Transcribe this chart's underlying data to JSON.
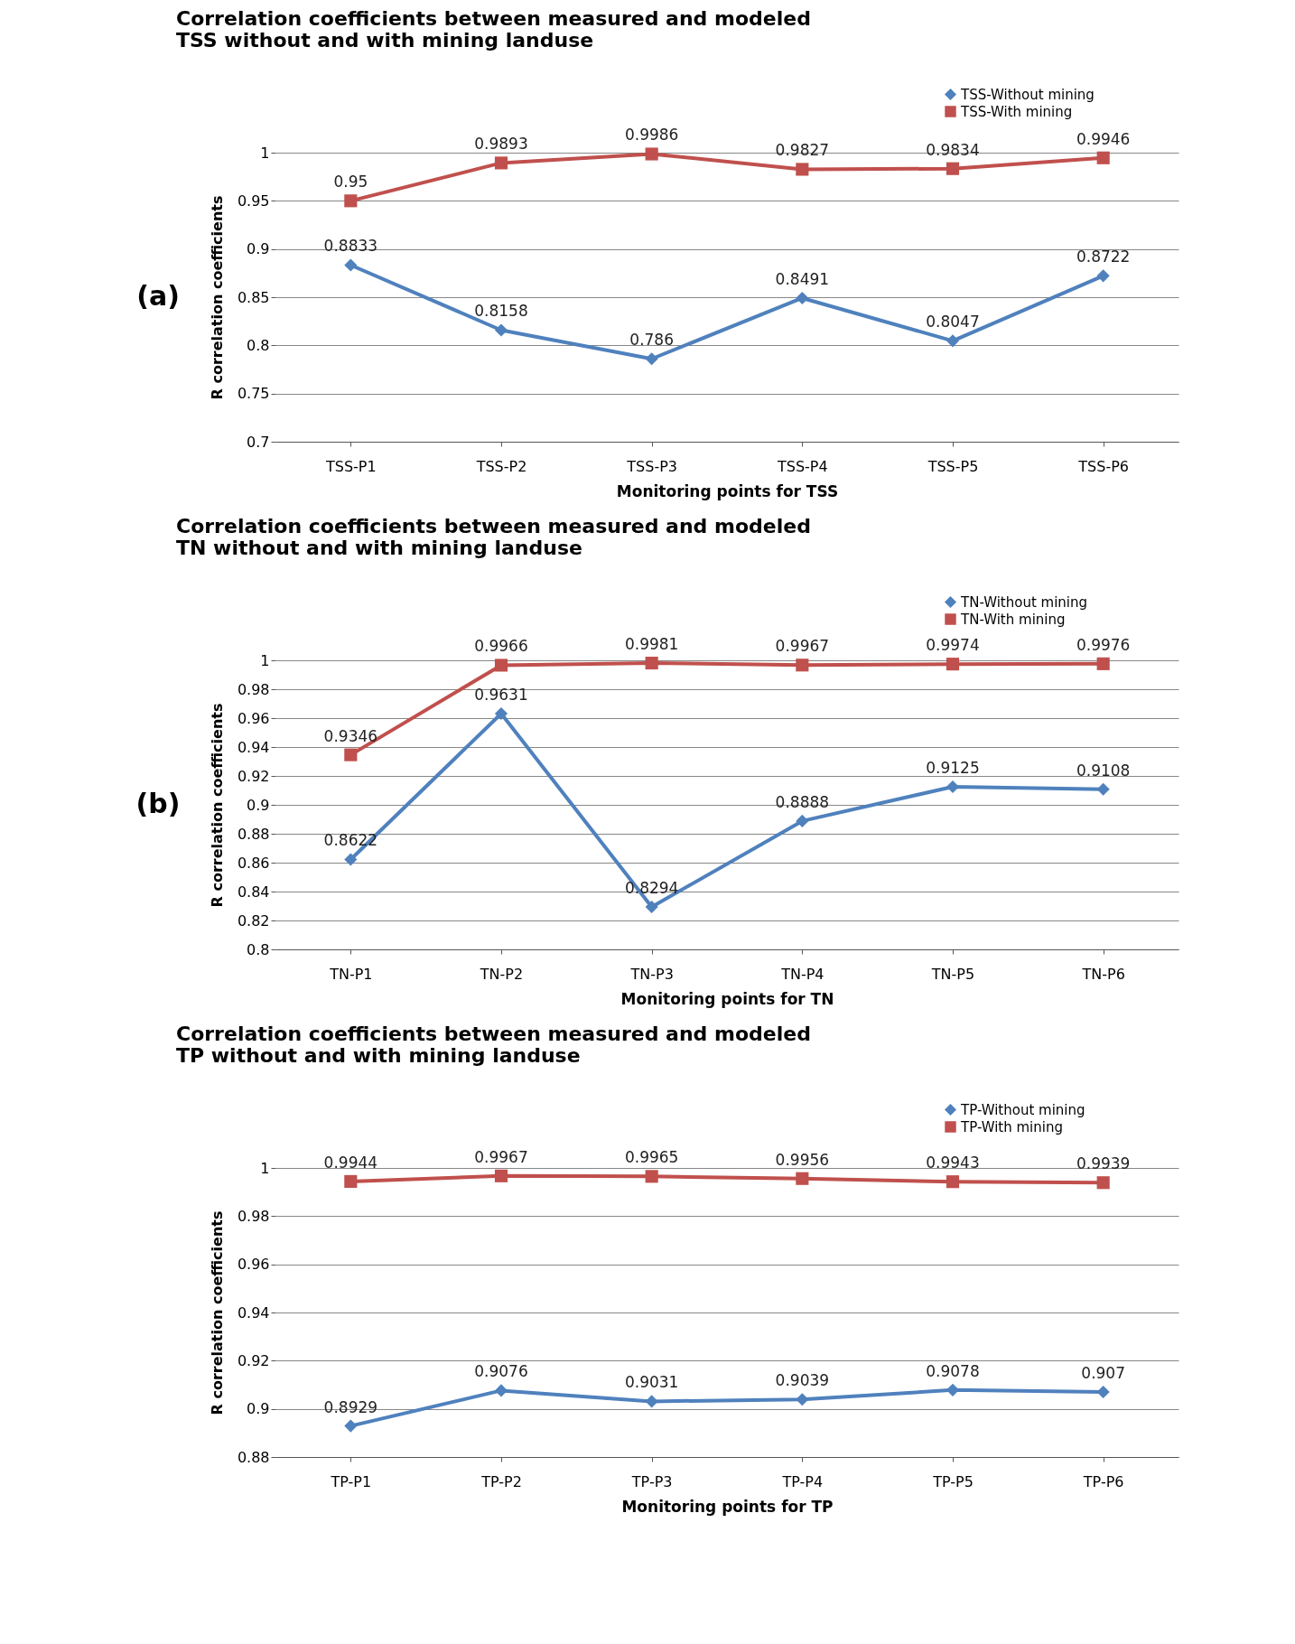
{
  "chart_data": [
    {
      "type": "line",
      "title": "Correlation coefficients between measured and modeled TSS without and with mining landuse",
      "xlabel": "Monitoring  points for TSS",
      "ylabel": "R correlation coefficients",
      "annotations": [
        "(a)"
      ],
      "categories": [
        "TSS-P1",
        "TSS-P2",
        "TSS-P3",
        "TSS-P4",
        "TSS-P5",
        "TSS-P6"
      ],
      "series": [
        {
          "name": "TSS-Without mining",
          "color": "#4f81bd",
          "marker": "diamond",
          "values": [
            0.8833,
            0.8158,
            0.786,
            0.8491,
            0.8047,
            0.8722
          ]
        },
        {
          "name": "TSS-With mining",
          "color": "#c0504d",
          "marker": "square",
          "values": [
            0.95,
            0.9893,
            0.9986,
            0.9827,
            0.9834,
            0.9946
          ]
        }
      ],
      "ylim": [
        0.7,
        1
      ],
      "yticks": [
        0.7,
        0.75,
        0.8,
        0.85,
        0.9,
        0.95,
        1
      ],
      "grid": "y",
      "line_style": "solid",
      "legend": "top right",
      "data_labels": true
    },
    {
      "type": "line",
      "title": "Correlation coefficients between measured and modeled TN without and with mining landuse",
      "xlabel": "Monitoring  points for TN",
      "ylabel": "R correlation coefficients",
      "annotations": [
        "(b)"
      ],
      "categories": [
        "TN-P1",
        "TN-P2",
        "TN-P3",
        "TN-P4",
        "TN-P5",
        "TN-P6"
      ],
      "series": [
        {
          "name": "TN-Without mining",
          "color": "#4f81bd",
          "marker": "diamond",
          "values": [
            0.8622,
            0.9631,
            0.8294,
            0.8888,
            0.9125,
            0.9108
          ]
        },
        {
          "name": "TN-With mining",
          "color": "#c0504d",
          "marker": "square",
          "values": [
            0.9346,
            0.9966,
            0.9981,
            0.9967,
            0.9974,
            0.9976
          ]
        }
      ],
      "ylim": [
        0.8,
        1
      ],
      "yticks": [
        0.8,
        0.82,
        0.84,
        0.86,
        0.88,
        0.9,
        0.92,
        0.94,
        0.96,
        0.98,
        1
      ],
      "grid": "y",
      "line_style": "solid",
      "legend": "top right",
      "data_labels": true
    },
    {
      "type": "line",
      "title": "Correlation coefficients between measured and modeled TP without and with mining landuse",
      "xlabel": "Monitoring  points for TP",
      "ylabel": "R correlation coefficients",
      "categories": [
        "TP-P1",
        "TP-P2",
        "TP-P3",
        "TP-P4",
        "TP-P5",
        "TP-P6"
      ],
      "series": [
        {
          "name": "TP-Without mining",
          "color": "#4f81bd",
          "marker": "diamond",
          "values": [
            0.8929,
            0.9076,
            0.9031,
            0.9039,
            0.9078,
            0.907
          ]
        },
        {
          "name": "TP-With mining",
          "color": "#c0504d",
          "marker": "square",
          "values": [
            0.9944,
            0.9967,
            0.9965,
            0.9956,
            0.9943,
            0.9939
          ]
        }
      ],
      "ylim": [
        0.88,
        1
      ],
      "yticks": [
        0.88,
        0.9,
        0.92,
        0.94,
        0.96,
        0.98,
        1
      ],
      "grid": "y",
      "line_style": "solid",
      "legend": "top right",
      "data_labels": true
    }
  ]
}
